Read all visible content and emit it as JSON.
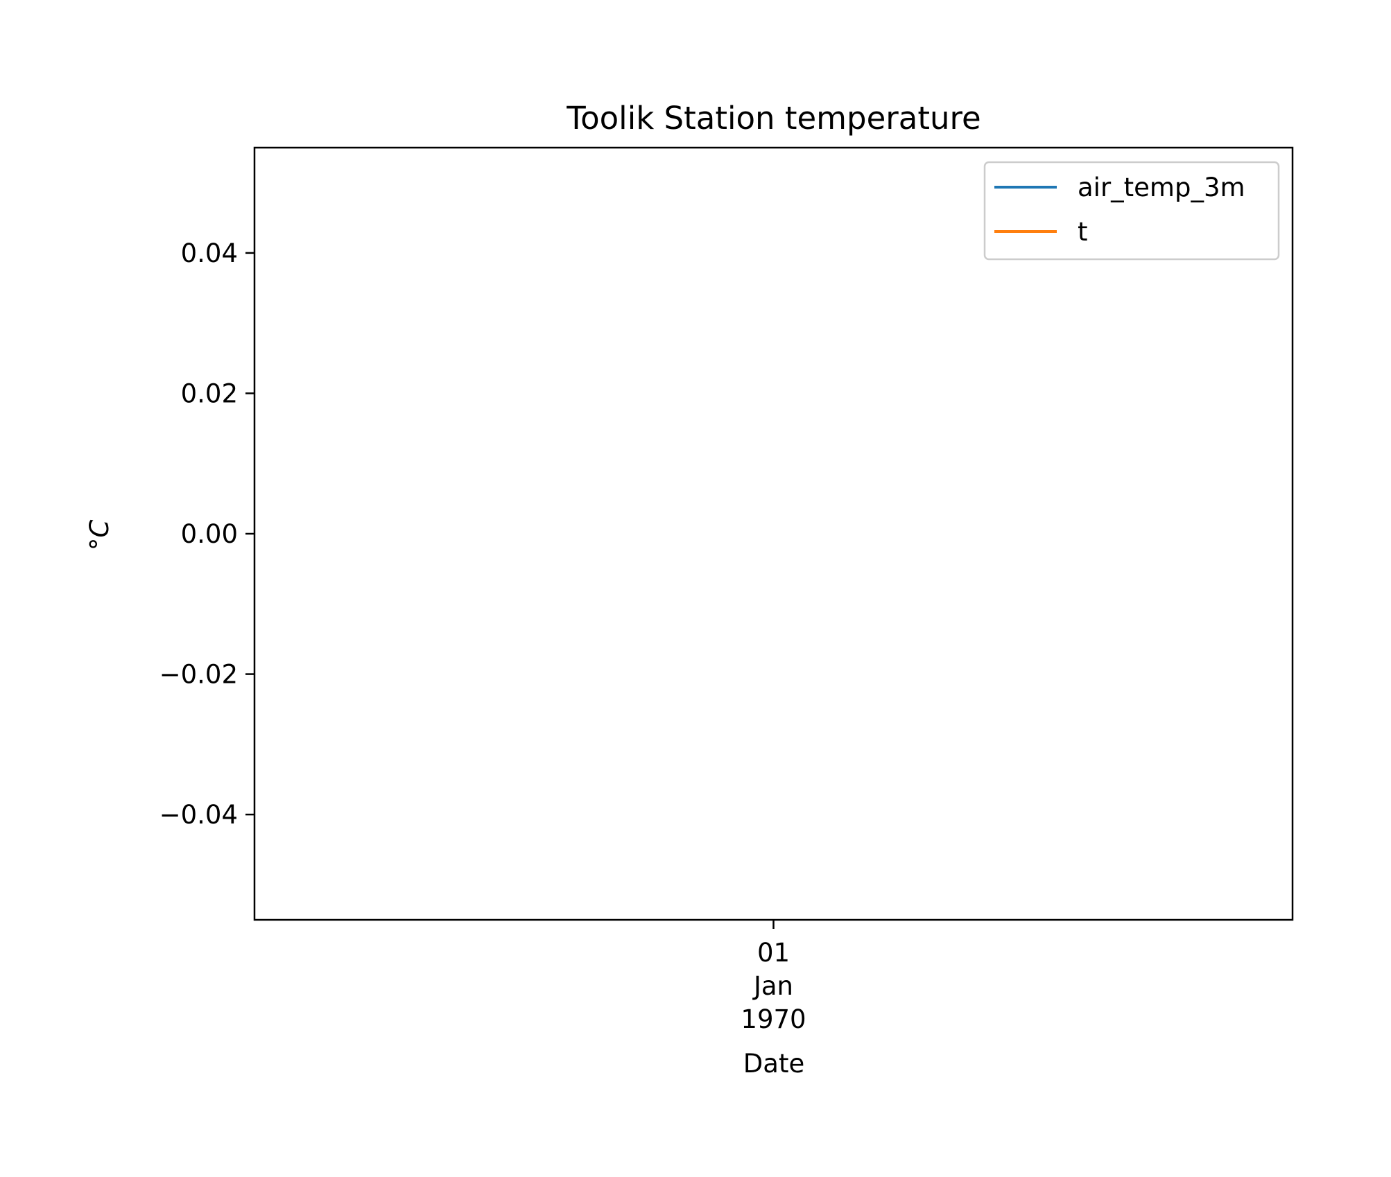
{
  "chart_data": {
    "type": "line",
    "title": "Toolik Station temperature",
    "xlabel": "Date",
    "ylabel": "°C",
    "x_ticks": [
      {
        "value": "1970-01-01",
        "lines": [
          "01",
          "Jan",
          "1970"
        ]
      }
    ],
    "y_ticks": [
      {
        "value": 0.04,
        "label": "0.04"
      },
      {
        "value": 0.02,
        "label": "0.02"
      },
      {
        "value": 0.0,
        "label": "0.00"
      },
      {
        "value": -0.02,
        "label": "−0.02"
      },
      {
        "value": -0.04,
        "label": "−0.04"
      }
    ],
    "ylim": [
      -0.055,
      0.055
    ],
    "grid": false,
    "legend_position": "top-right",
    "series": [
      {
        "name": "air_temp_3m",
        "color": "#1f77b4",
        "x": [],
        "y": []
      },
      {
        "name": "t",
        "color": "#ff7f0e",
        "x": [],
        "y": []
      }
    ]
  }
}
